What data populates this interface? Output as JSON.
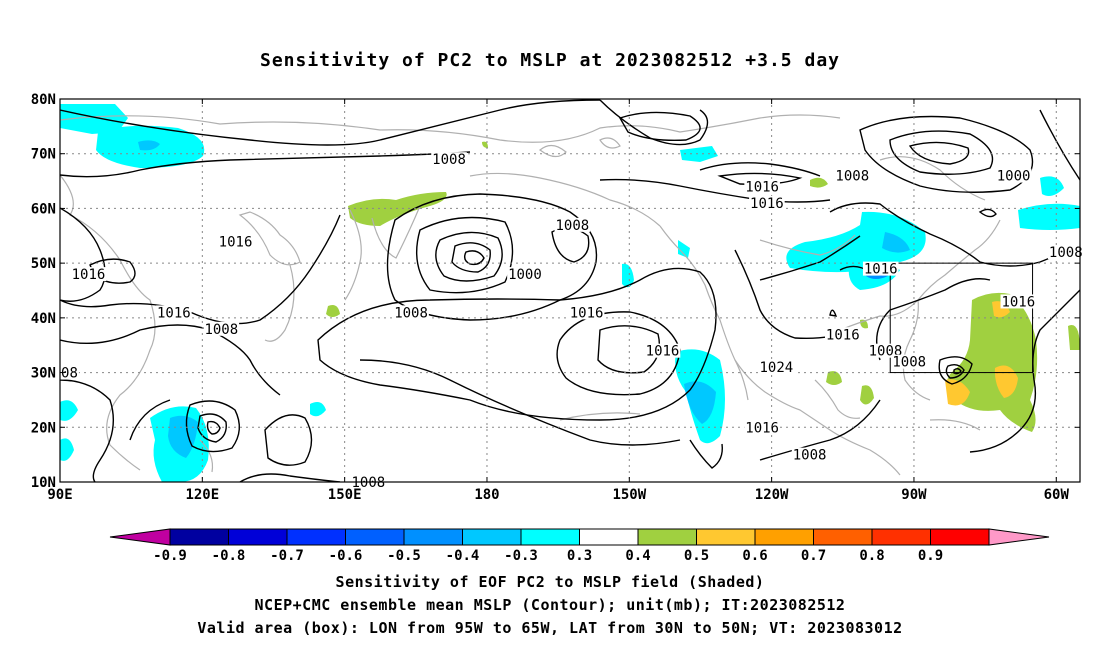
{
  "title": "Sensitivity of PC2 to MSLP at 2023082512 +3.5 day",
  "map": {
    "projection": "cylindrical-equidistant",
    "lon_range_deg_east": [
      90,
      305
    ],
    "lat_range_deg": [
      10,
      80
    ],
    "lat_labels": [
      "80N",
      "70N",
      "60N",
      "50N",
      "40N",
      "30N",
      "20N",
      "10N"
    ],
    "lon_labels": [
      "90E",
      "120E",
      "150E",
      "180",
      "150W",
      "120W",
      "90W",
      "60W"
    ],
    "grid": "dotted",
    "coastline_color": "#b0b0b0",
    "contour_color": "#000000",
    "contour_unit": "mb",
    "contour_labels": [
      {
        "value": "1008",
        "lon": 172,
        "lat": 69
      },
      {
        "value": "1016",
        "lon": 127,
        "lat": 54
      },
      {
        "value": "1008",
        "lon": 198,
        "lat": 57
      },
      {
        "value": "1016",
        "lon": 238,
        "lat": 64
      },
      {
        "value": "1016",
        "lon": 239,
        "lat": 61
      },
      {
        "value": "1008",
        "lon": 257,
        "lat": 66
      },
      {
        "value": "1000",
        "lon": 291,
        "lat": 66
      },
      {
        "value": "1000",
        "lon": 188,
        "lat": 48
      },
      {
        "value": "1016",
        "lon": 96,
        "lat": 48
      },
      {
        "value": "1016",
        "lon": 201,
        "lat": 41
      },
      {
        "value": "1008",
        "lon": 164,
        "lat": 41
      },
      {
        "value": "1016",
        "lon": 114,
        "lat": 41
      },
      {
        "value": "1008",
        "lon": 124,
        "lat": 38
      },
      {
        "value": "1016",
        "lon": 217,
        "lat": 34
      },
      {
        "value": "1024",
        "lon": 241,
        "lat": 31
      },
      {
        "value": "1008",
        "lon": 264,
        "lat": 34
      },
      {
        "value": "1016",
        "lon": 255,
        "lat": 37
      },
      {
        "value": "1016",
        "lon": 263,
        "lat": 49
      },
      {
        "value": "1016",
        "lon": 292,
        "lat": 43
      },
      {
        "value": "1008",
        "lon": 302,
        "lat": 52
      },
      {
        "value": "1008",
        "lon": 269,
        "lat": 32
      },
      {
        "value": "1016",
        "lon": 238,
        "lat": 20
      },
      {
        "value": "1008",
        "lon": 248,
        "lat": 15
      },
      {
        "value": "1008",
        "lon": 155,
        "lat": 10
      },
      {
        "value": "08",
        "lon": 92,
        "lat": 30
      }
    ],
    "valid_box": {
      "lon_w": 265,
      "lon_e": 295,
      "lat_s": 30,
      "lat_n": 50
    }
  },
  "colorbar": {
    "labels": [
      "-0.9",
      "-0.8",
      "-0.7",
      "-0.6",
      "-0.5",
      "-0.4",
      "-0.3",
      "0.3",
      "0.4",
      "0.5",
      "0.6",
      "0.7",
      "0.8",
      "0.9"
    ],
    "colors": [
      "#0000a0",
      "#0000d8",
      "#0030ff",
      "#0060ff",
      "#0090ff",
      "#00c8ff",
      "#00ffff",
      "#ffffff",
      "#a0d040",
      "#ffc830",
      "#ffa000",
      "#ff6000",
      "#ff3000",
      "#ff0000"
    ],
    "under_color": "#c000a0",
    "over_color": "#ff99c8"
  },
  "caption": {
    "line1": "Sensitivity of EOF PC2 to MSLP field (Shaded)",
    "line2": "NCEP+CMC ensemble mean MSLP (Contour); unit(mb); IT:2023082512",
    "line3": "Valid area (box): LON from 95W to 65W, LAT from 30N to 50N; VT: 2023083012"
  }
}
